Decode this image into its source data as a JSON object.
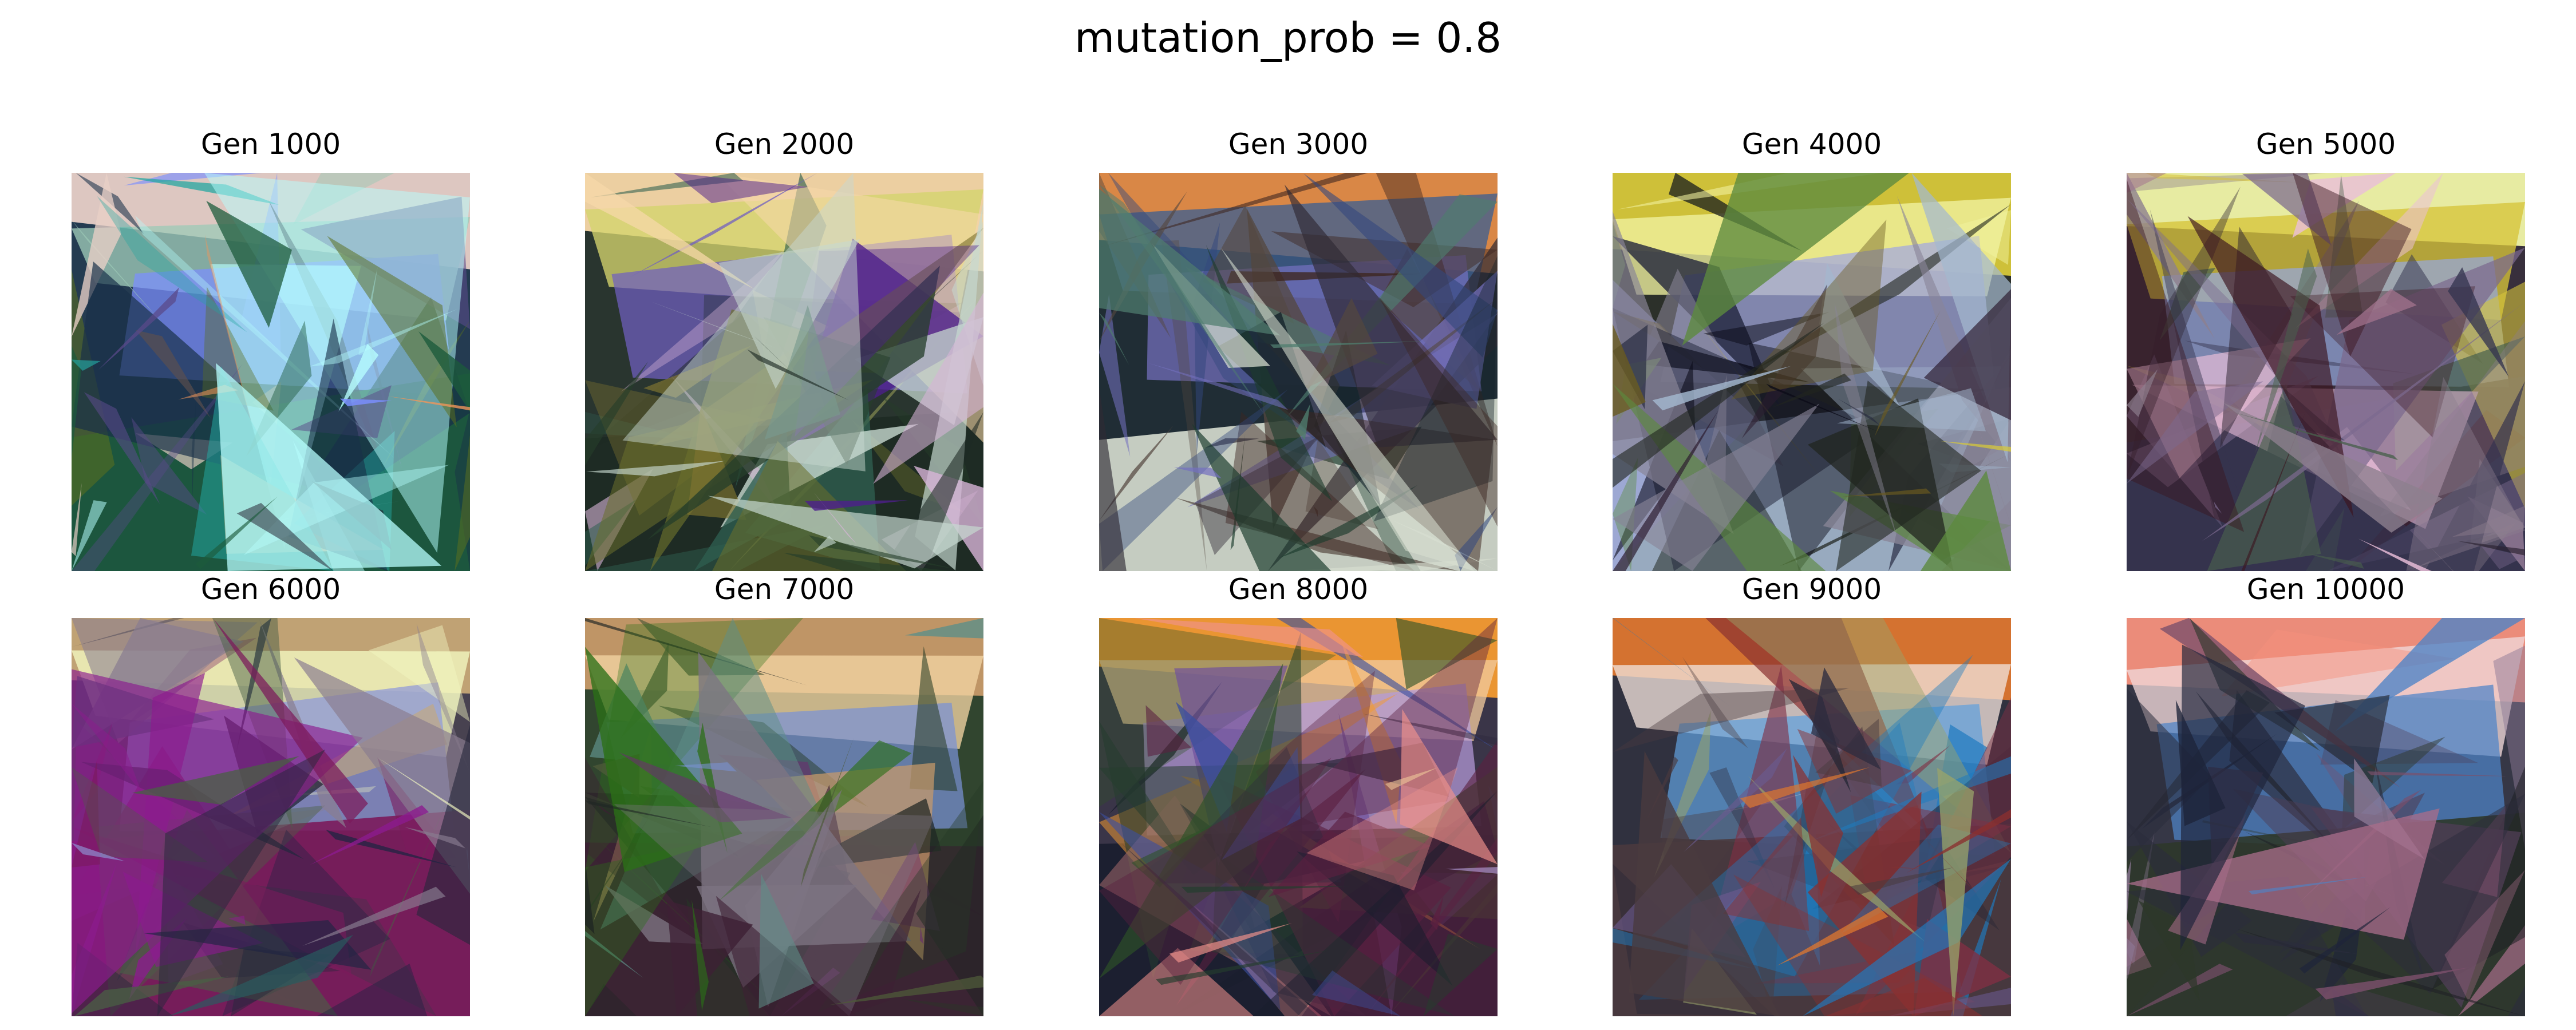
{
  "figure": {
    "title": "mutation_prob = 0.8",
    "panels": [
      {
        "title": "Gen 1000",
        "palette": [
          "#e8cfc7",
          "#9dc9b7",
          "#7b8fff",
          "#183048",
          "#242432",
          "#5a6f1f",
          "#5a4a8a",
          "#b7ffff",
          "#1c5a3c",
          "#f0955a",
          "#24a6a1"
        ]
      },
      {
        "title": "Gen 2000",
        "palette": [
          "#f7d8a8",
          "#d3d46d",
          "#705fc0",
          "#1d2a24",
          "#253e2a",
          "#4d1f8c",
          "#6a6e2c",
          "#c7d9d0",
          "#2e5e4f",
          "#d7b4d7",
          "#7d7330"
        ]
      },
      {
        "title": "Gen 3000",
        "palette": [
          "#e48c48",
          "#3f5f8f",
          "#7470bf",
          "#14222a",
          "#2f2a34",
          "#54473f",
          "#1b3b2c",
          "#d7ded0",
          "#4f7d6f",
          "#3d2620",
          "#33477d"
        ]
      },
      {
        "title": "Gen 4000",
        "palette": [
          "#d7c83a",
          "#f1f2a0",
          "#a2a7e0",
          "#21251f",
          "#20243a",
          "#2b1b2e",
          "#5d8a3e",
          "#898597",
          "#6b5b20",
          "#0b0b18",
          "#a4b8cf"
        ]
      },
      {
        "title": "Gen 5000",
        "palette": [
          "#f0f5a8",
          "#d6c43a",
          "#95a7dc",
          "#2d2432",
          "#3b151f",
          "#7c6a8f",
          "#35344f",
          "#8d7f8e",
          "#49614d",
          "#a5748e",
          "#eabed9"
        ]
      },
      {
        "title": "Gen 6000",
        "palette": [
          "#c7a876",
          "#f3f8c2",
          "#8f99d9",
          "#3e3847",
          "#202443",
          "#8c1b8e",
          "#897d90",
          "#2a5b60",
          "#26283b",
          "#7b1a5b",
          "#4a5f45"
        ]
      },
      {
        "title": "Gen 7000",
        "palette": [
          "#c79a69",
          "#f2d4a3",
          "#7a92d5",
          "#263b24",
          "#2b6f17",
          "#3d2034",
          "#7e7483",
          "#5e8f88",
          "#1f2523",
          "#6a2f6f",
          "#4d5a38"
        ]
      },
      {
        "title": "Gen 8000",
        "palette": [
          "#f39b32",
          "#f0c89b",
          "#b59bd9",
          "#2f2a3e",
          "#5a2040",
          "#253d2e",
          "#3b4f9f",
          "#704f9c",
          "#1a1d2d",
          "#2e5227",
          "#f0928c"
        ]
      },
      {
        "title": "Gen 9000",
        "palette": [
          "#dd762f",
          "#f0e0d8",
          "#60a0dc",
          "#252635",
          "#4a3a3e",
          "#6a5a8f",
          "#2f2d3f",
          "#8a3030",
          "#9aa46a",
          "#7f2f44",
          "#1f7bbf"
        ]
      },
      {
        "title": "Gen 10000",
        "palette": [
          "#f6907d",
          "#f0d7d9",
          "#4d83c7",
          "#2b2c3c",
          "#4e3e55",
          "#8c7895",
          "#1e243a",
          "#7b4f6b",
          "#2d372a",
          "#a86d8a",
          "#1f2025"
        ]
      }
    ]
  }
}
